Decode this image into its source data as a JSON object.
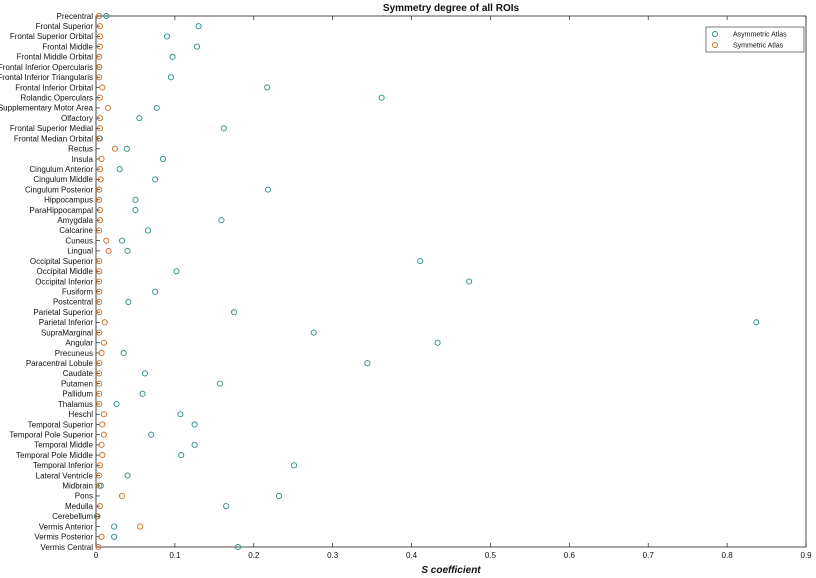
{
  "chart_data": {
    "type": "scatter",
    "title": "Symmetry degree of all ROIs",
    "xlabel": "S coefficient",
    "ylabel": "",
    "xlim": [
      0,
      0.9
    ],
    "xticks": [
      "0",
      "0.1",
      "0.2",
      "0.3",
      "0.4",
      "0.5",
      "0.6",
      "0.7",
      "0.8",
      "0.9"
    ],
    "xtick_values": [
      0,
      0.1,
      0.2,
      0.3,
      0.4,
      0.5,
      0.6,
      0.7,
      0.8,
      0.9
    ],
    "grid": false,
    "legend_position": "top-right",
    "categories": [
      "Precentral",
      "Frontal Superior",
      "Frontal Superior Orbital",
      "Frontal Middle",
      "Frontal Middle Orbital",
      "Frontal Inferior Opercularis",
      "Frontal Inferior Triangularis",
      "Frontal Inferior Orbital",
      "Rolandic Operculars",
      "Supplementary Motor Area",
      "Olfactory",
      "Frontal Superior Medial",
      "Frontal Median Orbital",
      "Rectus",
      "Insula",
      "Cingulum Anterior",
      "Cingulum Middle",
      "Cingulum Posterior",
      "Hippocampus",
      "ParaHippocampal",
      "Amygdala",
      "Calcarine",
      "Cuneus",
      "Lingual",
      "Occipital Superior",
      "Occipital Middle",
      "Occipital Inferior",
      "Fusiform",
      "Postcentral",
      "Parietal Superior",
      "Parietal Inferior",
      "SupraMarginal",
      "Angular",
      "Precuneus",
      "Paracentral Lobule",
      "Caudate",
      "Putamen",
      "Pallidum",
      "Thalamus",
      "Heschl",
      "Temporal Superior",
      "Temporal Pole Superior",
      "Temporal Middle",
      "Temporal Pole Middle",
      "Temporal Inferior",
      "Lateral Ventricle",
      "Midbrain",
      "Pons",
      "Medulla",
      "Cerebellum",
      "Vermis Anterior",
      "Vermis Posterior",
      "Vermis Central"
    ],
    "series": [
      {
        "name": "Asymmetric Atlas",
        "color": "#2e8b8b",
        "values": [
          0.013,
          0.13,
          0.09,
          0.128,
          0.097,
          0.004,
          0.095,
          0.217,
          0.362,
          0.077,
          0.055,
          0.162,
          0.005,
          0.039,
          0.085,
          0.03,
          0.075,
          0.218,
          0.05,
          0.05,
          0.159,
          0.066,
          0.033,
          0.04,
          0.411,
          0.102,
          0.473,
          0.075,
          0.041,
          0.175,
          0.837,
          0.276,
          0.433,
          0.035,
          0.344,
          0.062,
          0.157,
          0.059,
          0.026,
          0.107,
          0.125,
          0.07,
          0.125,
          0.108,
          0.251,
          0.04,
          0.006,
          0.232,
          0.165,
          0.001,
          0.023,
          0.023,
          0.18
        ]
      },
      {
        "name": "Symmetric Atlas",
        "color": "#d2691e",
        "values": [
          0.004,
          0.005,
          0.005,
          0.005,
          0.004,
          0.004,
          0.004,
          0.008,
          0.005,
          0.015,
          0.005,
          0.005,
          0.004,
          0.024,
          0.007,
          0.005,
          0.006,
          0.004,
          0.004,
          0.005,
          0.005,
          0.004,
          0.013,
          0.016,
          0.004,
          0.004,
          0.004,
          0.004,
          0.004,
          0.004,
          0.011,
          0.004,
          0.01,
          0.007,
          0.004,
          0.004,
          0.004,
          0.004,
          0.004,
          0.01,
          0.008,
          0.01,
          0.007,
          0.008,
          0.005,
          0.004,
          0.004,
          0.033,
          0.005,
          0.002,
          0.056,
          0.007,
          0.003
        ]
      }
    ]
  }
}
